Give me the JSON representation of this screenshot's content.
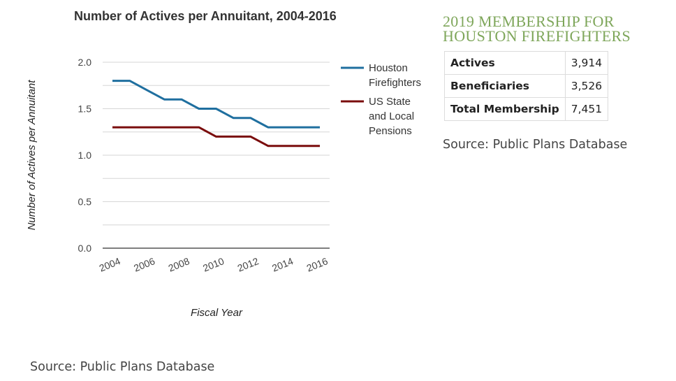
{
  "chart_data": {
    "type": "line",
    "title": "Number of Actives per Annuitant, 2004-2016",
    "xlabel": "Fiscal Year",
    "ylabel": "Number of Actives per Annuitant",
    "x": [
      2004,
      2005,
      2006,
      2007,
      2008,
      2009,
      2010,
      2011,
      2012,
      2013,
      2014,
      2015,
      2016
    ],
    "x_ticks": [
      "2004",
      "2006",
      "2008",
      "2010",
      "2012",
      "2014",
      "2016"
    ],
    "y_ticks": [
      "0.0",
      "0.5",
      "1.0",
      "1.5",
      "2.0"
    ],
    "ylim": [
      0,
      2.0
    ],
    "grid": true,
    "legend_position": "right",
    "series": [
      {
        "name": "Houston Firefighters",
        "color": "#1f6f9f",
        "values": [
          1.8,
          1.8,
          1.7,
          1.6,
          1.6,
          1.5,
          1.5,
          1.4,
          1.4,
          1.3,
          1.3,
          1.3,
          1.3
        ]
      },
      {
        "name": "US State and Local Pensions",
        "color": "#7a0c0c",
        "values": [
          1.3,
          1.3,
          1.3,
          1.3,
          1.3,
          1.3,
          1.2,
          1.2,
          1.2,
          1.1,
          1.1,
          1.1,
          1.1
        ]
      }
    ]
  },
  "legend": {
    "houston_lines": [
      "Houston",
      "Firefighters"
    ],
    "us_lines": [
      "US State",
      "and Local",
      "Pensions"
    ]
  },
  "membership": {
    "title": "2019 MEMBERSHIP FOR HOUSTON FIREFIGHTERS",
    "rows": [
      {
        "label": "Actives",
        "value": "3,914"
      },
      {
        "label": "Beneficiaries",
        "value": "3,526"
      },
      {
        "label": "Total Membership",
        "value": "7,451"
      }
    ],
    "source": "Source: Public Plans Database"
  },
  "footer": {
    "source": "Source: Public Plans Database"
  }
}
